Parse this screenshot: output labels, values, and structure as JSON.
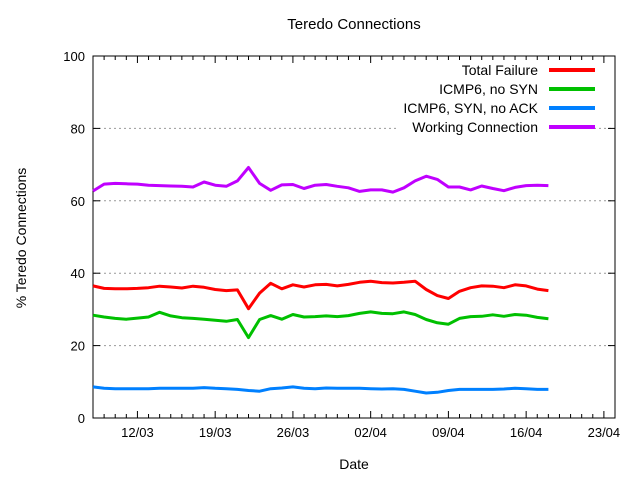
{
  "title": "Teredo Connections",
  "chart_data": {
    "type": "line",
    "title": "Teredo Connections",
    "xlabel": "Date",
    "ylabel": "% Teredo Connections",
    "ylim": [
      0,
      100
    ],
    "yticks": [
      0,
      20,
      40,
      60,
      80,
      100
    ],
    "grid": "horizontal-dotted",
    "legend_position": "top-right-inside",
    "x_axis": {
      "unit": "days",
      "total_days": 47,
      "minor_tick_every_days": 1,
      "tick_days": [
        4,
        11,
        18,
        25,
        32,
        39,
        46
      ],
      "tick_labels": [
        "12/03",
        "19/03",
        "26/03",
        "02/04",
        "09/04",
        "16/04",
        "23/04"
      ]
    },
    "sample_dates": [
      "08/03",
      "09/03",
      "10/03",
      "11/03",
      "12/03",
      "13/03",
      "14/03",
      "15/03",
      "16/03",
      "17/03",
      "18/03",
      "19/03",
      "20/03",
      "21/03",
      "22/03",
      "23/03",
      "24/03",
      "25/03",
      "26/03",
      "27/03",
      "28/03",
      "29/03",
      "30/03",
      "31/03",
      "01/04",
      "02/04",
      "03/04",
      "04/04",
      "05/04",
      "06/04",
      "07/04",
      "08/04",
      "09/04",
      "10/04",
      "11/04",
      "12/04",
      "13/04",
      "14/04",
      "15/04",
      "16/04",
      "17/04",
      "18/04"
    ],
    "series": [
      {
        "name": "Total Failure",
        "color": "#ff0000",
        "values": [
          36.5,
          35.8,
          35.7,
          35.7,
          35.8,
          36.0,
          36.4,
          36.2,
          35.9,
          36.4,
          36.1,
          35.5,
          35.2,
          35.4,
          30.2,
          34.5,
          37.2,
          35.7,
          36.8,
          36.2,
          36.8,
          36.9,
          36.5,
          36.9,
          37.5,
          37.8,
          37.4,
          37.3,
          37.5,
          37.8,
          35.5,
          33.8,
          33.0,
          35.0,
          36.0,
          36.5,
          36.4,
          36.0,
          36.8,
          36.5,
          35.6,
          35.2
        ]
      },
      {
        "name": "ICMP6, no SYN",
        "color": "#00c000",
        "values": [
          28.4,
          27.9,
          27.5,
          27.3,
          27.6,
          27.9,
          29.2,
          28.2,
          27.7,
          27.5,
          27.3,
          27.0,
          26.7,
          27.2,
          22.2,
          27.2,
          28.3,
          27.3,
          28.6,
          27.9,
          28.0,
          28.2,
          28.0,
          28.3,
          28.9,
          29.3,
          28.9,
          28.8,
          29.3,
          28.6,
          27.2,
          26.3,
          25.9,
          27.5,
          28.0,
          28.1,
          28.5,
          28.1,
          28.6,
          28.4,
          27.8,
          27.4
        ]
      },
      {
        "name": "ICMP6, SYN, no ACK",
        "color": "#0080ff",
        "values": [
          8.6,
          8.2,
          8.1,
          8.1,
          8.1,
          8.1,
          8.2,
          8.2,
          8.2,
          8.2,
          8.4,
          8.2,
          8.1,
          7.9,
          7.6,
          7.4,
          8.1,
          8.3,
          8.6,
          8.2,
          8.1,
          8.3,
          8.2,
          8.2,
          8.2,
          8.1,
          8.0,
          8.1,
          7.9,
          7.4,
          6.9,
          7.1,
          7.6,
          7.9,
          7.9,
          7.9,
          7.9,
          8.0,
          8.2,
          8.1,
          7.9,
          7.9
        ]
      },
      {
        "name": "Working Connection",
        "color": "#c000ff",
        "values": [
          62.7,
          64.6,
          64.8,
          64.7,
          64.6,
          64.3,
          64.2,
          64.1,
          64.0,
          63.8,
          65.2,
          64.3,
          64.0,
          65.5,
          69.2,
          64.8,
          62.9,
          64.4,
          64.5,
          63.4,
          64.3,
          64.5,
          64.0,
          63.6,
          62.6,
          63.0,
          63.0,
          62.4,
          63.6,
          65.5,
          66.8,
          65.9,
          63.8,
          63.8,
          63.0,
          64.1,
          63.4,
          62.8,
          63.7,
          64.2,
          64.3,
          64.2
        ]
      }
    ]
  }
}
